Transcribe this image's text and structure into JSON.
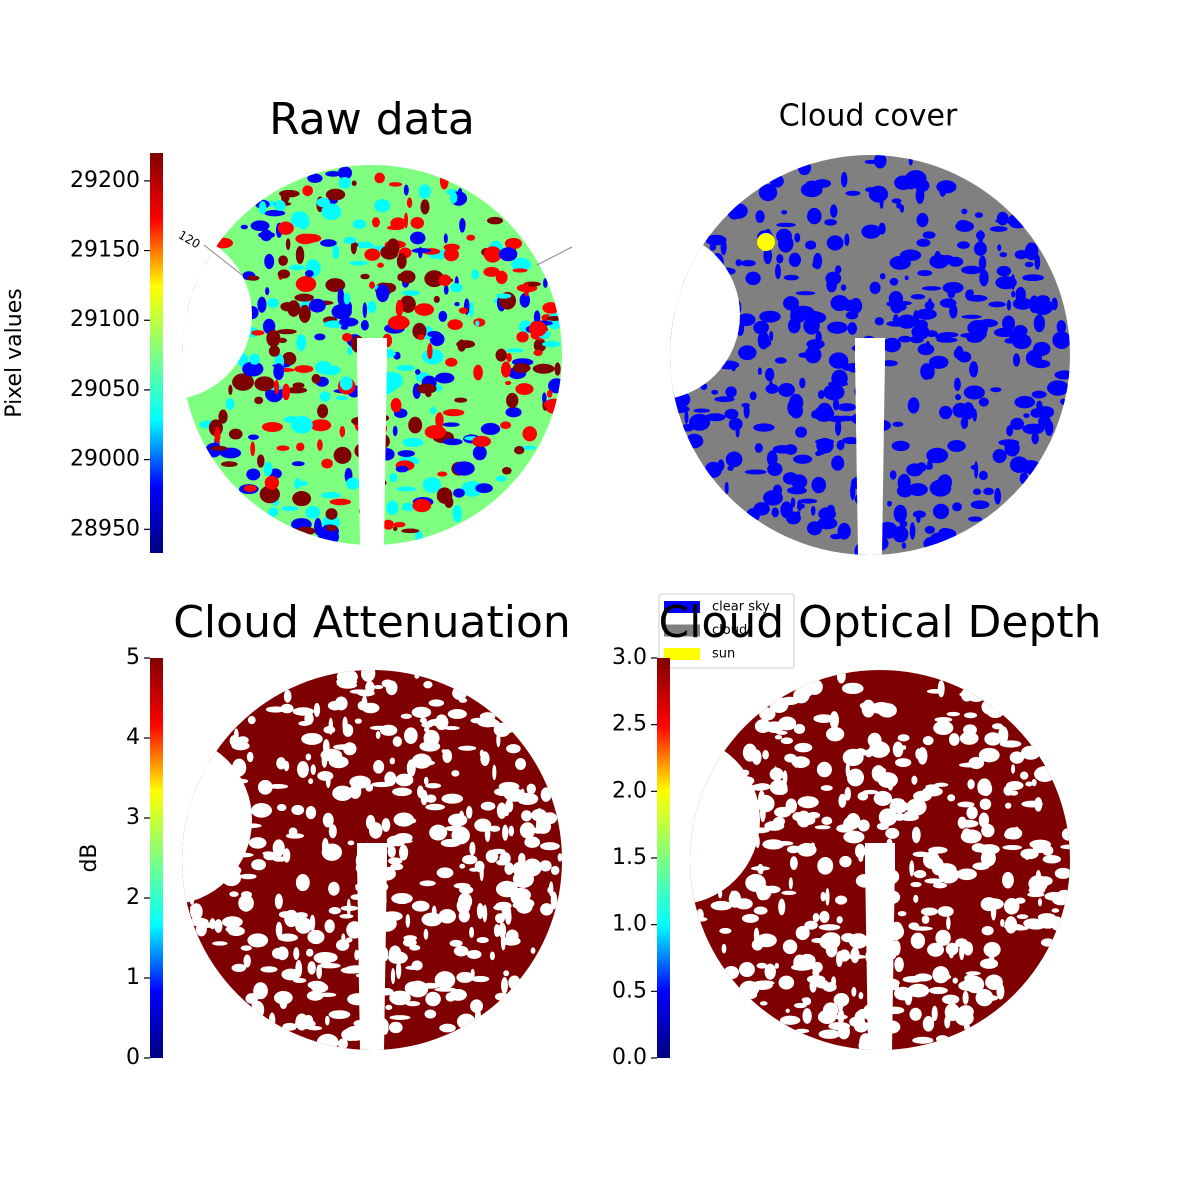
{
  "chart_data": [
    {
      "type": "image",
      "title": "Raw data",
      "ylabel": "Pixel values",
      "annotation": "120",
      "colormap": [
        "#00007f",
        "#0000ff",
        "#00ffff",
        "#7fff7f",
        "#ffff00",
        "#ff0000",
        "#7f0000"
      ],
      "ylim": [
        28933,
        29220
      ],
      "yticks": [
        28950,
        29000,
        29050,
        29100,
        29150,
        29200
      ]
    },
    {
      "type": "image",
      "title": "Cloud cover",
      "legend": [
        {
          "name": "clear sky",
          "color": "#0000ff"
        },
        {
          "name": "cloud",
          "color": "#808080"
        },
        {
          "name": "sun",
          "color": "#ffff00"
        }
      ]
    },
    {
      "type": "image",
      "title": "Cloud Attenuation",
      "ylabel": "dB",
      "colormap": [
        "#00007f",
        "#0000ff",
        "#00ffff",
        "#7fff7f",
        "#ffff00",
        "#ff0000",
        "#7f0000"
      ],
      "ylim": [
        0,
        5
      ],
      "yticks": [
        0,
        1,
        2,
        3,
        4,
        5
      ]
    },
    {
      "type": "image",
      "title": "Cloud Optical Depth",
      "colormap": [
        "#00007f",
        "#0000ff",
        "#00ffff",
        "#7fff7f",
        "#ffff00",
        "#ff0000",
        "#7f0000"
      ],
      "ylim": [
        0,
        3
      ],
      "yticks": [
        {
          "value": 0,
          "label": "0.0"
        },
        {
          "value": 0.5,
          "label": "0.5"
        },
        {
          "value": 1,
          "label": "1.0"
        },
        {
          "value": 1.5,
          "label": "1.5"
        },
        {
          "value": 2,
          "label": "2.0"
        },
        {
          "value": 2.5,
          "label": "2.5"
        },
        {
          "value": 3,
          "label": "3.0"
        }
      ]
    }
  ]
}
